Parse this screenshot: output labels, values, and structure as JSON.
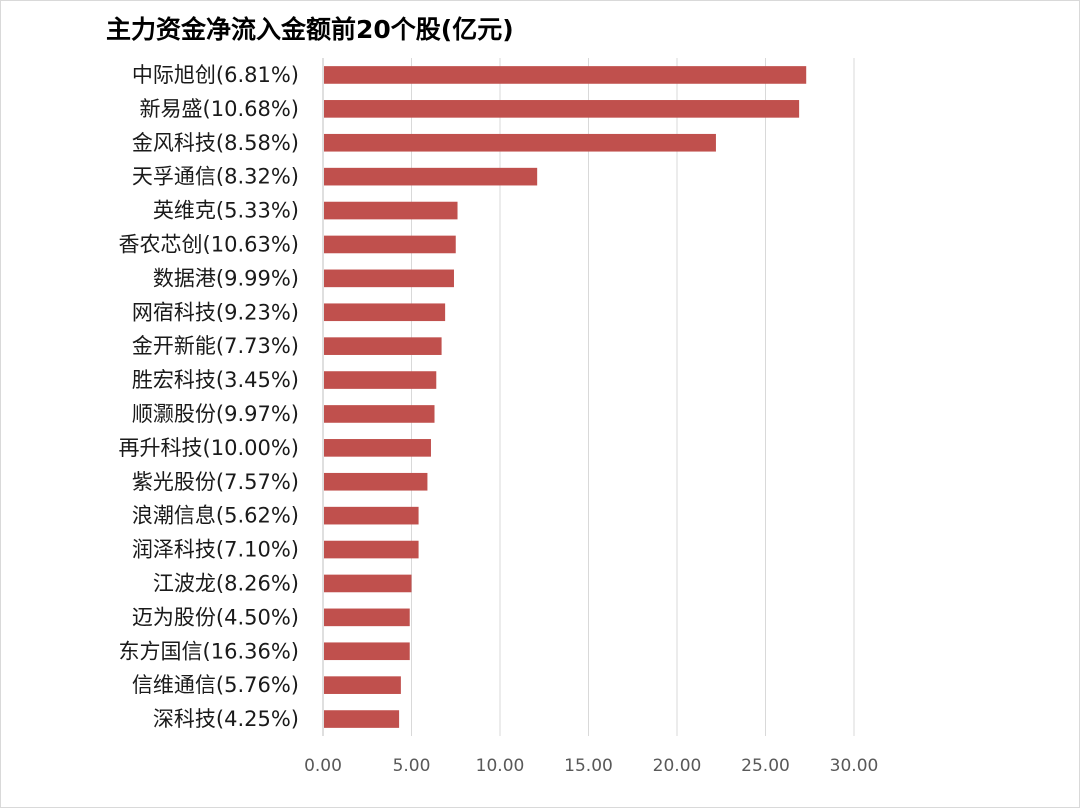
{
  "chart_data": {
    "type": "bar",
    "orientation": "horizontal",
    "title": "主力资金净流入金额前20个股(亿元)",
    "categories": [
      "中际旭创(6.81%)",
      "新易盛(10.68%)",
      "金风科技(8.58%)",
      "天孚通信(8.32%)",
      "英维克(5.33%)",
      "香农芯创(10.63%)",
      "数据港(9.99%)",
      "网宿科技(9.23%)",
      "金开新能(7.73%)",
      "胜宏科技(3.45%)",
      "顺灏股份(9.97%)",
      "再升科技(10.00%)",
      "紫光股份(7.57%)",
      "浪潮信息(5.62%)",
      "润泽科技(7.10%)",
      "江波龙(8.26%)",
      "迈为股份(4.50%)",
      "东方国信(16.36%)",
      "信维通信(5.76%)",
      "深科技(4.25%)"
    ],
    "values": [
      27.3,
      26.9,
      22.2,
      12.1,
      7.6,
      7.5,
      7.4,
      6.9,
      6.7,
      6.4,
      6.3,
      6.1,
      5.9,
      5.4,
      5.4,
      5.0,
      4.9,
      4.9,
      4.4,
      4.3
    ],
    "xlim": [
      0,
      30
    ],
    "xticks": [
      "0.00",
      "5.00",
      "10.00",
      "15.00",
      "20.00",
      "25.00",
      "30.00"
    ],
    "xtick_values": [
      0,
      5,
      10,
      15,
      20,
      25,
      30
    ],
    "grid": true,
    "legend": "none",
    "bar_color": "#c0504d",
    "grid_color": "#d9d9d9"
  }
}
